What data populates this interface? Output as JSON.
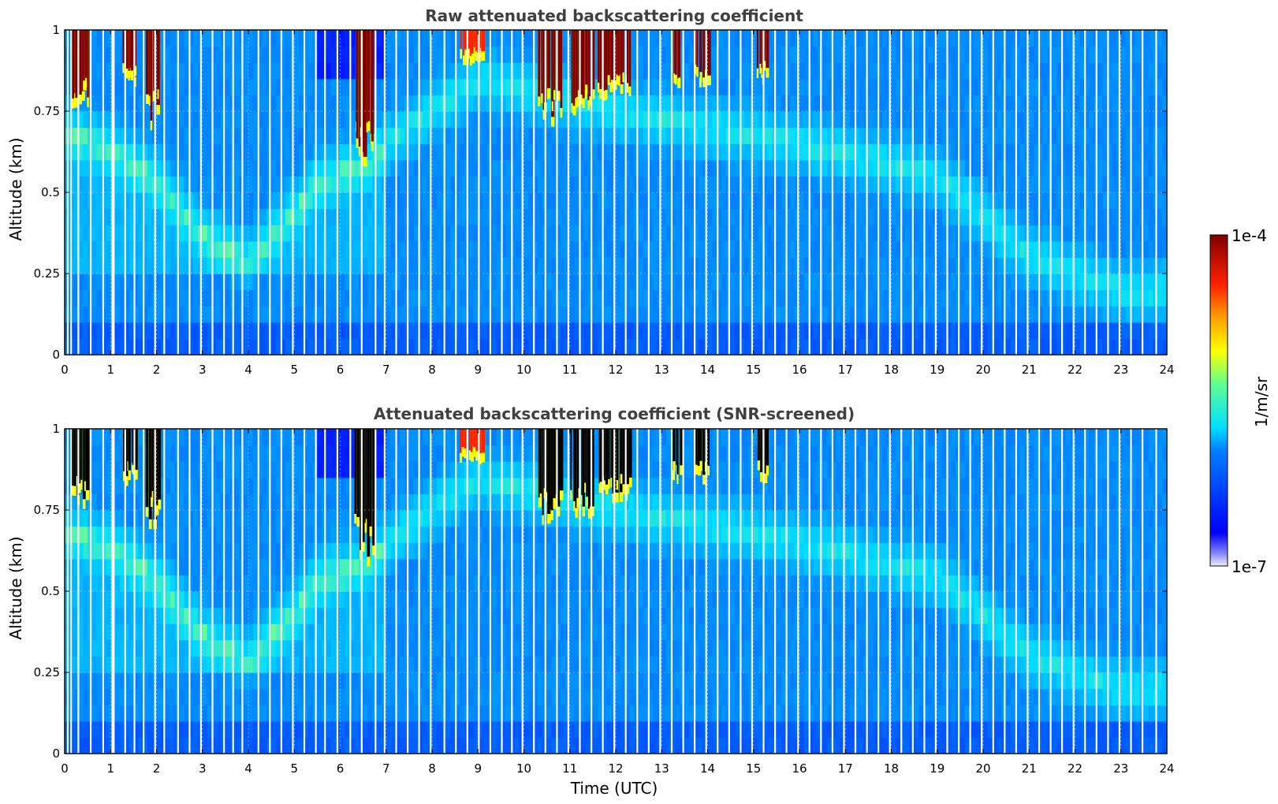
{
  "colors": {
    "base": "#1f6fff",
    "grid": "#d0d0d0",
    "cloud_dark": "#7f0000",
    "cloud_red": "#ff2000",
    "cloud_yellow": "#ffff00",
    "screened": "#000000",
    "gap": "#ffffff"
  },
  "chart_data": [
    {
      "type": "heatmap",
      "title": "Raw attenuated backscattering coefficient",
      "xlabel": "",
      "ylabel": "Altitude (km)",
      "xlim": [
        0,
        24
      ],
      "ylim": [
        0,
        1
      ],
      "xticks": [
        "0",
        "1",
        "2",
        "3",
        "4",
        "5",
        "6",
        "7",
        "8",
        "9",
        "10",
        "11",
        "12",
        "13",
        "14",
        "15",
        "16",
        "17",
        "18",
        "19",
        "20",
        "21",
        "22",
        "23",
        "24"
      ],
      "yticks": [
        "0",
        "0.25",
        "0.5",
        "0.75",
        "1"
      ],
      "ytick_values": [
        0,
        0.25,
        0.5,
        0.75,
        1
      ],
      "screened": false
    },
    {
      "type": "heatmap",
      "title": "Attenuated backscattering coefficient (SNR-screened)",
      "xlabel": "Time (UTC)",
      "ylabel": "Altitude (km)",
      "xlim": [
        0,
        24
      ],
      "ylim": [
        0,
        1
      ],
      "xticks": [
        "0",
        "1",
        "2",
        "3",
        "4",
        "5",
        "6",
        "7",
        "8",
        "9",
        "10",
        "11",
        "12",
        "13",
        "14",
        "15",
        "16",
        "17",
        "18",
        "19",
        "20",
        "21",
        "22",
        "23",
        "24"
      ],
      "yticks": [
        "0",
        "0.25",
        "0.5",
        "0.75",
        "1"
      ],
      "ytick_values": [
        0,
        0.25,
        0.5,
        0.75,
        1
      ],
      "screened": true
    }
  ],
  "colorbar": {
    "label": "1/m/sr",
    "max_label": "1e-4",
    "min_label": "1e-7",
    "range": [
      1e-07,
      0.0001
    ],
    "colormap": "jet"
  },
  "gap_times": [
    0.05,
    0.12,
    0.28,
    0.55,
    0.82,
    1.02,
    1.05,
    1.3,
    1.5,
    1.7,
    1.95,
    2.15,
    2.45,
    2.7,
    2.95,
    3.2,
    3.45,
    3.65,
    3.85,
    4.2,
    4.45,
    4.7,
    4.95,
    5.2,
    5.45,
    5.65,
    5.92,
    6.2,
    6.45,
    6.75,
    6.95,
    7.2,
    7.45,
    7.7,
    7.95,
    8.25,
    8.5,
    8.75,
    9.0,
    9.25,
    9.5,
    9.72,
    9.95,
    10.2,
    10.45,
    10.7,
    10.95,
    11.2,
    11.45,
    11.7,
    11.95,
    12.2,
    12.45,
    12.7,
    12.95,
    13.2,
    13.45,
    13.7,
    13.95,
    14.2,
    14.45,
    14.7,
    14.95,
    15.2,
    15.45,
    15.7,
    15.95,
    16.2,
    16.45,
    16.7,
    16.95,
    17.2,
    17.45,
    17.7,
    17.95,
    18.2,
    18.45,
    18.7,
    18.95,
    19.2,
    19.45,
    19.7,
    19.95,
    20.2,
    20.45,
    20.7,
    20.95,
    21.2,
    21.45,
    21.7,
    21.95,
    22.2,
    22.45,
    22.7,
    22.95,
    23.2,
    23.45,
    23.75
  ],
  "clouds": [
    {
      "t0": 0.1,
      "t1": 0.5,
      "base": 0.78,
      "strength": "dark"
    },
    {
      "t0": 1.25,
      "t1": 1.55,
      "base": 0.85,
      "strength": "dark"
    },
    {
      "t0": 1.75,
      "t1": 2.05,
      "base": 0.72,
      "strength": "dark"
    },
    {
      "t0": 6.3,
      "t1": 6.7,
      "base": 0.6,
      "strength": "dark"
    },
    {
      "t0": 8.6,
      "t1": 9.1,
      "base": 0.92,
      "strength": "red"
    },
    {
      "t0": 10.3,
      "t1": 10.8,
      "base": 0.73,
      "strength": "dark"
    },
    {
      "t0": 11.0,
      "t1": 11.5,
      "base": 0.75,
      "strength": "dark"
    },
    {
      "t0": 11.6,
      "t1": 12.3,
      "base": 0.8,
      "strength": "dark"
    },
    {
      "t0": 13.2,
      "t1": 13.4,
      "base": 0.85,
      "strength": "dark"
    },
    {
      "t0": 13.7,
      "t1": 14.0,
      "base": 0.85,
      "strength": "dark"
    },
    {
      "t0": 15.05,
      "t1": 15.3,
      "base": 0.86,
      "strength": "dark"
    }
  ],
  "aerosol_layer": [
    {
      "t": 0.0,
      "h": 0.7
    },
    {
      "t": 1.0,
      "h": 0.65
    },
    {
      "t": 2.0,
      "h": 0.55
    },
    {
      "t": 3.0,
      "h": 0.38
    },
    {
      "t": 4.0,
      "h": 0.3
    },
    {
      "t": 5.0,
      "h": 0.45
    },
    {
      "t": 5.5,
      "h": 0.55
    },
    {
      "t": 6.5,
      "h": 0.6
    },
    {
      "t": 7.5,
      "h": 0.7
    },
    {
      "t": 9.0,
      "h": 0.85
    },
    {
      "t": 12.0,
      "h": 0.75
    },
    {
      "t": 16.0,
      "h": 0.65
    },
    {
      "t": 19.0,
      "h": 0.55
    },
    {
      "t": 21.0,
      "h": 0.3
    },
    {
      "t": 23.0,
      "h": 0.2
    },
    {
      "t": 24.0,
      "h": 0.2
    }
  ]
}
